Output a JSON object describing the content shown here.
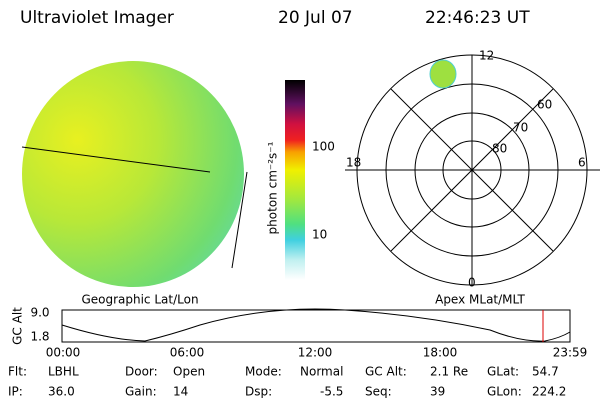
{
  "header": {
    "title": "Ultraviolet Imager",
    "date": "20 Jul 07",
    "time": "22:46:23 UT"
  },
  "colorbar": {
    "label": "photon cm⁻²s⁻¹",
    "ticks": [
      "100",
      "10"
    ]
  },
  "map": {
    "label": "Geographic Lat/Lon"
  },
  "polar": {
    "label": "Apex MLat/MLT",
    "mlt_labels": [
      "12",
      "18",
      "6",
      "0"
    ],
    "lat_labels": [
      "60",
      "70",
      "80"
    ]
  },
  "timeline": {
    "y_label": "GC Alt",
    "yticks": [
      "9.0",
      "1.8"
    ],
    "xticks": [
      "00:00",
      "06:00",
      "12:00",
      "18:00",
      "23:59"
    ]
  },
  "footer": {
    "rows": [
      [
        [
          "Flt:",
          "LBHL"
        ],
        [
          "Door:",
          "Open"
        ],
        [
          "Mode:",
          "Normal"
        ],
        [
          "GC Alt:",
          "2.1 Re"
        ],
        [
          "GLat:",
          "54.7"
        ]
      ],
      [
        [
          "IP:",
          "36.0"
        ],
        [
          "Gain:",
          "14"
        ],
        [
          "Dsp:",
          "-5.5"
        ],
        [
          "Seq:",
          "39"
        ],
        [
          "GLon:",
          "224.2"
        ]
      ]
    ]
  }
}
